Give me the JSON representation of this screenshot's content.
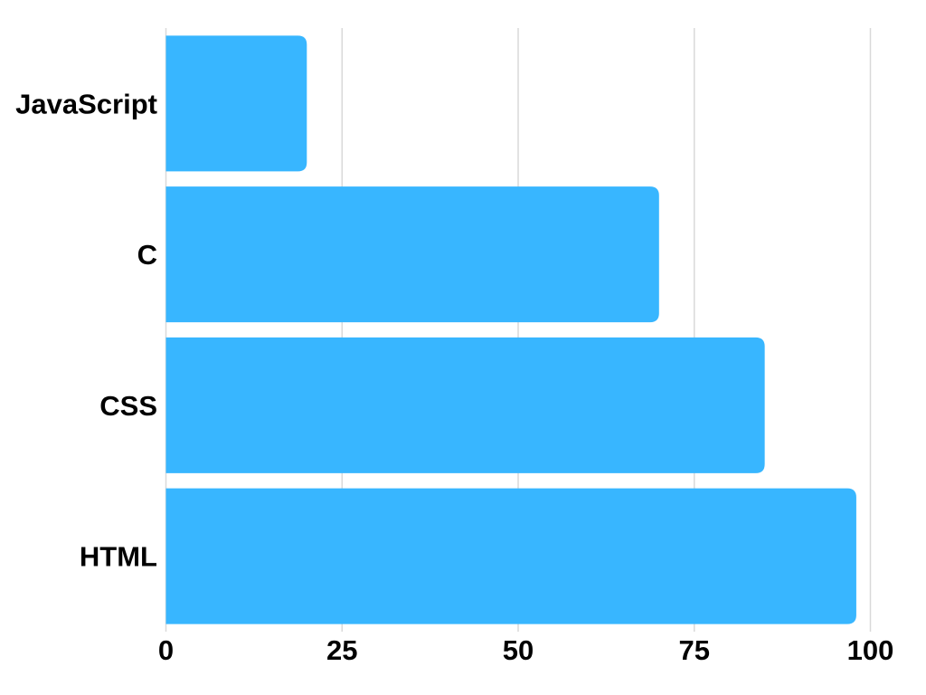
{
  "chart_data": {
    "type": "bar",
    "orientation": "horizontal",
    "title": "",
    "xlabel": "",
    "ylabel": "",
    "categories": [
      "JavaScript",
      "C",
      "CSS",
      "HTML"
    ],
    "values": [
      20,
      70,
      85,
      98
    ],
    "xlim": [
      0,
      100
    ],
    "xticks": [
      0,
      25,
      50,
      75,
      100
    ],
    "grid": true,
    "legend": "none",
    "bar_color": "#38b6ff"
  }
}
